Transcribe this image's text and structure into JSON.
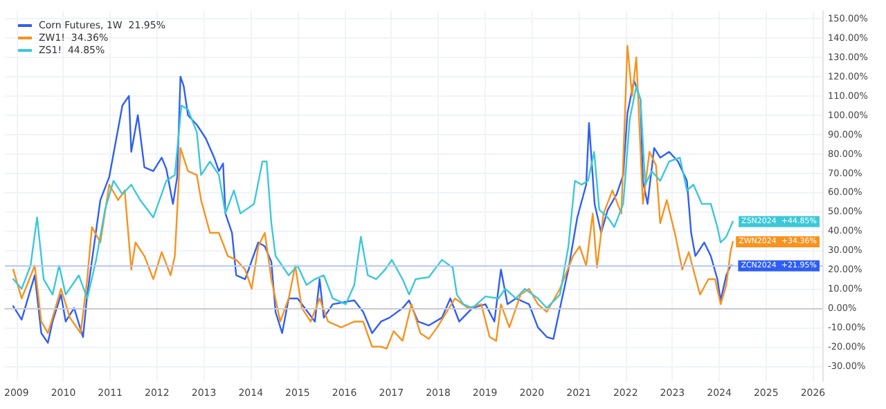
{
  "chart_data": {
    "type": "line",
    "legend": "top left",
    "grid": true,
    "marker": "none",
    "line_style": "solid",
    "xlim": [
      2008.75,
      2026.2
    ],
    "xticks": [
      2009,
      2010,
      2011,
      2012,
      2013,
      2014,
      2015,
      2016,
      2017,
      2018,
      2019,
      2020,
      2021,
      2022,
      2023,
      2024,
      2025,
      2026
    ],
    "ylim": [
      -38,
      154
    ],
    "yticks": [
      {
        "value": -30,
        "label": "-30.00%"
      },
      {
        "value": -20,
        "label": "-20.00%"
      },
      {
        "value": -10,
        "label": "-10.00%"
      },
      {
        "value": 0,
        "label": "0.00%"
      },
      {
        "value": 10,
        "label": "10.00%"
      },
      {
        "value": 20,
        "label": "20.00%"
      },
      {
        "value": 30,
        "label": "30.00%"
      },
      {
        "value": 40,
        "label": "40.00%"
      },
      {
        "value": 50,
        "label": "50.00%"
      },
      {
        "value": 60,
        "label": "60.00%"
      },
      {
        "value": 70,
        "label": "70.00%"
      },
      {
        "value": 80,
        "label": "80.00%"
      },
      {
        "value": 90,
        "label": "90.00%"
      },
      {
        "value": 100,
        "label": "100.00%"
      },
      {
        "value": 110,
        "label": "110.00%"
      },
      {
        "value": 120,
        "label": "120.00%"
      },
      {
        "value": 130,
        "label": "130.00%"
      },
      {
        "value": 140,
        "label": "140.00%"
      },
      {
        "value": 150,
        "label": "150.00%"
      }
    ],
    "ref_lines": [
      {
        "axis": "y",
        "value": 0,
        "color": "#c8cad1"
      },
      {
        "axis": "y",
        "value": 21.95,
        "color": "#b8c7fb"
      }
    ],
    "annotations": [
      "ZSN2024  +44.85%",
      "ZWN2024  +34.36%",
      "ZCN2024  +21.95%"
    ],
    "series": [
      {
        "name": "Corn Futures, 1W  21.95%",
        "color": "#2f5ef5",
        "x": [
          2008.93,
          2009.11,
          2009.39,
          2009.53,
          2009.67,
          2009.77,
          2009.95,
          2010.05,
          2010.23,
          2010.42,
          2010.51,
          2010.79,
          2010.98,
          2011.17,
          2011.26,
          2011.4,
          2011.45,
          2011.59,
          2011.73,
          2011.92,
          2012.1,
          2012.2,
          2012.34,
          2012.43,
          2012.5,
          2012.57,
          2012.66,
          2012.85,
          2013.04,
          2013.22,
          2013.32,
          2013.41,
          2013.46,
          2013.6,
          2013.69,
          2013.88,
          2014.16,
          2014.3,
          2014.44,
          2014.53,
          2014.67,
          2014.81,
          2015.0,
          2015.37,
          2015.47,
          2015.56,
          2015.75,
          2016.21,
          2016.4,
          2016.59,
          2016.78,
          2016.96,
          2017.24,
          2017.38,
          2017.57,
          2017.8,
          2018.08,
          2018.26,
          2018.45,
          2018.73,
          2019.01,
          2019.2,
          2019.34,
          2019.48,
          2019.66,
          2019.94,
          2020.13,
          2020.32,
          2020.46,
          2020.6,
          2020.78,
          2020.97,
          2021.16,
          2021.22,
          2021.34,
          2021.48,
          2021.62,
          2021.81,
          2021.95,
          2022.04,
          2022.18,
          2022.32,
          2022.37,
          2022.47,
          2022.61,
          2022.74,
          2022.93,
          2023.12,
          2023.31,
          2023.4,
          2023.49,
          2023.68,
          2023.82,
          2023.96,
          2024.03,
          2024.15,
          2024.24,
          2024.29
        ],
        "values": [
          1,
          -6,
          17,
          -13,
          -18,
          -7,
          7,
          -7,
          0,
          -15,
          7,
          56,
          68,
          93,
          105,
          110,
          81,
          100,
          73,
          71,
          78,
          72,
          54,
          68,
          120,
          115,
          100,
          95,
          88,
          78,
          71,
          75,
          49,
          39,
          17,
          15,
          34,
          32,
          24,
          -2,
          -13,
          5,
          5,
          -7,
          15,
          -5,
          2,
          4,
          -2,
          -13,
          -7,
          -5,
          0,
          4,
          -7,
          -9,
          -5,
          5,
          -7,
          0,
          2,
          -7,
          20,
          2,
          5,
          2,
          -10,
          -15,
          -16,
          0,
          20,
          47,
          64,
          96,
          54,
          39,
          51,
          59,
          69,
          101,
          118,
          108,
          66,
          54,
          83,
          78,
          81,
          76,
          66,
          39,
          27,
          34,
          27,
          15,
          4,
          17,
          22,
          21.95
        ]
      },
      {
        "name": "ZW1!  34.36%",
        "color": "#f7931e",
        "x": [
          2008.93,
          2009.11,
          2009.39,
          2009.53,
          2009.67,
          2009.77,
          2009.95,
          2010.14,
          2010.37,
          2010.51,
          2010.61,
          2010.79,
          2010.98,
          2011.17,
          2011.31,
          2011.45,
          2011.54,
          2011.73,
          2011.92,
          2012.1,
          2012.29,
          2012.38,
          2012.5,
          2012.66,
          2012.85,
          2012.94,
          2013.13,
          2013.32,
          2013.51,
          2013.69,
          2013.88,
          2014.02,
          2014.16,
          2014.3,
          2014.44,
          2014.63,
          2014.81,
          2014.95,
          2015.09,
          2015.28,
          2015.47,
          2015.65,
          2015.93,
          2016.21,
          2016.4,
          2016.59,
          2016.78,
          2016.9,
          2017.05,
          2017.24,
          2017.43,
          2017.62,
          2017.8,
          2017.98,
          2018.36,
          2018.64,
          2018.92,
          2019.1,
          2019.24,
          2019.34,
          2019.52,
          2019.76,
          2019.94,
          2020.13,
          2020.32,
          2020.6,
          2020.88,
          2021.02,
          2021.16,
          2021.3,
          2021.39,
          2021.53,
          2021.72,
          2021.91,
          2022.04,
          2022.14,
          2022.23,
          2022.37,
          2022.51,
          2022.65,
          2022.74,
          2022.88,
          2023.07,
          2023.21,
          2023.35,
          2023.59,
          2023.77,
          2023.91,
          2024.03,
          2024.15,
          2024.24,
          2024.29
        ],
        "values": [
          20,
          5,
          22,
          -7,
          -13,
          -5,
          10,
          -5,
          -13,
          15,
          42,
          34,
          64,
          56,
          61,
          20,
          34,
          27,
          15,
          29,
          17,
          27,
          83,
          71,
          69,
          56,
          39,
          39,
          27,
          25,
          20,
          10,
          32,
          39,
          15,
          -7,
          5,
          22,
          0,
          -7,
          5,
          -7,
          -10,
          -7,
          -7,
          -20,
          -20,
          -21,
          -12,
          -17,
          2,
          -13,
          -16,
          -10,
          5,
          0,
          2,
          -15,
          -17,
          2,
          -10,
          7,
          10,
          2,
          -2,
          10,
          27,
          32,
          22,
          49,
          21,
          49,
          61,
          49,
          136,
          110,
          130,
          54,
          81,
          74,
          44,
          56,
          37,
          20,
          29,
          7,
          15,
          15,
          2,
          12,
          29,
          34.36
        ]
      },
      {
        "name": "ZS1!  44.85%",
        "color": "#3cc8d8",
        "x": [
          2008.93,
          2009.11,
          2009.3,
          2009.44,
          2009.58,
          2009.77,
          2009.91,
          2010.05,
          2010.33,
          2010.51,
          2010.7,
          2010.89,
          2011.07,
          2011.26,
          2011.45,
          2011.64,
          2011.92,
          2012.2,
          2012.38,
          2012.52,
          2012.66,
          2012.85,
          2012.94,
          2013.13,
          2013.32,
          2013.46,
          2013.64,
          2013.78,
          2014.07,
          2014.25,
          2014.34,
          2014.44,
          2014.53,
          2014.81,
          2015.0,
          2015.19,
          2015.37,
          2015.56,
          2015.75,
          2016.03,
          2016.21,
          2016.35,
          2016.5,
          2016.68,
          2016.87,
          2017.01,
          2017.24,
          2017.38,
          2017.52,
          2017.8,
          2018.08,
          2018.31,
          2018.4,
          2018.54,
          2018.73,
          2019.01,
          2019.29,
          2019.43,
          2019.66,
          2019.85,
          2020.13,
          2020.32,
          2020.6,
          2020.78,
          2020.92,
          2021.06,
          2021.2,
          2021.33,
          2021.44,
          2021.62,
          2021.76,
          2021.95,
          2022.09,
          2022.23,
          2022.32,
          2022.42,
          2022.56,
          2022.74,
          2022.93,
          2023.16,
          2023.31,
          2023.45,
          2023.63,
          2023.82,
          2023.96,
          2024.03,
          2024.15,
          2024.29
        ],
        "values": [
          15,
          10,
          22,
          47,
          15,
          7,
          22,
          7,
          17,
          5,
          25,
          51,
          66,
          59,
          64,
          56,
          47,
          66,
          69,
          105,
          103,
          91,
          69,
          76,
          69,
          49,
          61,
          49,
          54,
          76,
          76,
          44,
          27,
          17,
          22,
          12,
          15,
          17,
          5,
          2,
          12,
          37,
          17,
          15,
          20,
          25,
          15,
          7,
          15,
          16,
          25,
          21,
          7,
          2,
          0,
          6,
          5,
          10,
          5,
          10,
          5,
          0,
          7,
          32,
          66,
          64,
          66,
          81,
          51,
          47,
          42,
          54,
          98,
          115,
          108,
          64,
          71,
          66,
          76,
          78,
          61,
          64,
          54,
          54,
          42,
          34,
          37,
          44.85
        ]
      }
    ]
  }
}
